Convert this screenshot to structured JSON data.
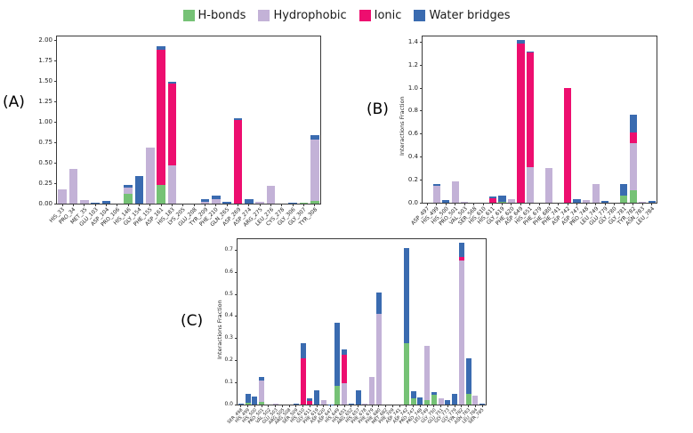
{
  "legend": {
    "items": [
      {
        "key": "h_bonds",
        "label": "H-bonds"
      },
      {
        "key": "hydrophobic",
        "label": "Hydrophobic"
      },
      {
        "key": "ionic",
        "label": "Ionic"
      },
      {
        "key": "water_bridges",
        "label": "Water bridges"
      }
    ]
  },
  "colors": {
    "h_bonds": "#76c276",
    "hydrophobic": "#c3b2d7",
    "ionic": "#ed0e6f",
    "water_bridges": "#3a6bb0",
    "axis": "#3a3a3a"
  },
  "chart_data": [
    {
      "id": "A",
      "panel_label": "(A)",
      "type": "bar",
      "stacked": true,
      "ylabel": "",
      "ymax": 2.05,
      "yticks": [
        {
          "value": 0.0,
          "label": "0.00"
        },
        {
          "value": 0.25,
          "label": "0.25"
        },
        {
          "value": 0.5,
          "label": "0.50"
        },
        {
          "value": 0.75,
          "label": "0.75"
        },
        {
          "value": 1.0,
          "label": "1.00"
        },
        {
          "value": 1.25,
          "label": "1.25"
        },
        {
          "value": 1.5,
          "label": "1.50"
        },
        {
          "value": 1.75,
          "label": "1.75"
        },
        {
          "value": 2.0,
          "label": "2.00"
        }
      ],
      "categories": [
        "HIS_33",
        "PRO_34",
        "MET_35",
        "GLU_103",
        "ASP_104",
        "PRO_106",
        "HIS_146",
        "GLY_154",
        "PHE_155",
        "ASP_161",
        "HIS_183",
        "LYS_205",
        "GLU_208",
        "TYR_209",
        "PHE_210",
        "GLN_265",
        "ASP_269",
        "ASP_274",
        "ARG_275",
        "LEU_276",
        "CYS_278",
        "GLY_306",
        "GLY_307",
        "TYR_308"
      ],
      "series": [
        {
          "name": "H-bonds",
          "key": "h_bonds",
          "values": [
            0,
            0,
            0,
            0,
            0,
            0,
            0.12,
            0,
            0,
            0.23,
            0,
            0,
            0,
            0,
            0,
            0,
            0,
            0,
            0,
            0,
            0,
            0,
            0.01,
            0.03
          ]
        },
        {
          "name": "Hydrophobic",
          "key": "hydrophobic",
          "values": [
            0.17,
            0.43,
            0.045,
            0,
            0,
            0,
            0.08,
            0,
            0.69,
            0,
            0.47,
            0,
            0,
            0.02,
            0.06,
            0,
            0,
            0,
            0.025,
            0.22,
            0,
            0,
            0,
            0.75
          ]
        },
        {
          "name": "Ionic",
          "key": "ionic",
          "values": [
            0,
            0,
            0,
            0,
            0,
            0,
            0,
            0,
            0,
            1.66,
            1.0,
            0,
            0,
            0,
            0,
            0,
            1.03,
            0,
            0,
            0,
            0,
            0,
            0,
            0
          ]
        },
        {
          "name": "Water bridges",
          "key": "water_bridges",
          "values": [
            0,
            0,
            0,
            0.012,
            0.032,
            0,
            0.03,
            0.34,
            0,
            0.04,
            0.02,
            0,
            0,
            0.04,
            0.04,
            0.02,
            0.02,
            0.05,
            0,
            0,
            0,
            0.01,
            0,
            0.06
          ]
        }
      ]
    },
    {
      "id": "B",
      "panel_label": "(B)",
      "type": "bar",
      "stacked": true,
      "ylabel": "Interactions Fraction",
      "ymax": 1.45,
      "yticks": [
        {
          "value": 0.0,
          "label": "0.0"
        },
        {
          "value": 0.2,
          "label": "0.2"
        },
        {
          "value": 0.4,
          "label": "0.4"
        },
        {
          "value": 0.6,
          "label": "0.6"
        },
        {
          "value": 0.8,
          "label": "0.8"
        },
        {
          "value": 1.0,
          "label": "1.0"
        },
        {
          "value": 1.2,
          "label": "1.2"
        },
        {
          "value": 1.4,
          "label": "1.4"
        }
      ],
      "categories": [
        "ASP_497",
        "HIS_499",
        "HIS_500",
        "PRO_501",
        "VAL_503",
        "SER_568",
        "HIS_610",
        "HIS_611",
        "GLY_619",
        "PHE_620",
        "ASP_649",
        "HIS_651",
        "PHE_679",
        "PHE_680",
        "PHE_741",
        "ASP_742",
        "ASP_747",
        "PRO_748",
        "LEU_749",
        "GLU_779",
        "GLY_780",
        "GLY_781",
        "TYR_782",
        "ASN_783",
        "LEU_784"
      ],
      "series": [
        {
          "name": "H-bonds",
          "key": "h_bonds",
          "values": [
            0,
            0,
            0,
            0,
            0,
            0,
            0,
            0,
            0.01,
            0,
            0,
            0,
            0,
            0,
            0,
            0,
            0,
            0,
            0,
            0,
            0,
            0.06,
            0.11,
            0,
            0
          ]
        },
        {
          "name": "Hydrophobic",
          "key": "hydrophobic",
          "values": [
            0,
            0.145,
            0,
            0.185,
            0.01,
            0,
            0,
            0,
            0,
            0.03,
            0,
            0.31,
            0,
            0.3,
            0,
            0,
            0,
            0.02,
            0.165,
            0,
            0,
            0,
            0.41,
            0.005,
            0
          ]
        },
        {
          "name": "Ionic",
          "key": "ionic",
          "values": [
            0,
            0,
            0,
            0,
            0,
            0,
            0,
            0.04,
            0,
            0,
            1.39,
            1.0,
            0,
            0,
            0,
            1.0,
            0,
            0,
            0,
            0,
            0,
            0,
            0.09,
            0,
            0
          ]
        },
        {
          "name": "Water bridges",
          "key": "water_bridges",
          "values": [
            0,
            0.015,
            0.025,
            0,
            0,
            0,
            0,
            0.012,
            0.055,
            0,
            0.03,
            0.012,
            0,
            0,
            0,
            0,
            0.03,
            0,
            0,
            0.015,
            0,
            0.1,
            0.155,
            0,
            0.015
          ]
        }
      ]
    },
    {
      "id": "C",
      "panel_label": "(C)",
      "type": "bar",
      "stacked": true,
      "ylabel": "Interactions Fraction",
      "ymax": 0.75,
      "yticks": [
        {
          "value": 0.0,
          "label": "0.0"
        },
        {
          "value": 0.1,
          "label": "0.1"
        },
        {
          "value": 0.2,
          "label": "0.2"
        },
        {
          "value": 0.3,
          "label": "0.3"
        },
        {
          "value": 0.4,
          "label": "0.4"
        },
        {
          "value": 0.5,
          "label": "0.5"
        },
        {
          "value": 0.6,
          "label": "0.6"
        },
        {
          "value": 0.7,
          "label": "0.7"
        }
      ],
      "categories": [
        "SER_498",
        "HIS_499",
        "HIS_500",
        "PRO_501",
        "VAL_502",
        "GLU_503",
        "ARG_505",
        "ARG_508",
        "SER_509",
        "HIS_610",
        "GLY_611",
        "PHE_619",
        "ASP_620",
        "ASP_647",
        "HIS_649",
        "HIS_651",
        "ARG_652",
        "HIS_657",
        "PHE_678",
        "PHE_679",
        "PHE_680",
        "MET_682",
        "PHE_709",
        "ASP_741",
        "ASP_742",
        "PRO_747",
        "PRO_748",
        "LEU_749",
        "GLY_750",
        "GLU_751",
        "GLY_773",
        "GLY_779",
        "TYR_782",
        "ASN_783",
        "LEU_784",
        "SER_785"
      ],
      "series": [
        {
          "name": "H-bonds",
          "key": "h_bonds",
          "values": [
            0,
            0.01,
            0,
            0.012,
            0,
            0,
            0,
            0,
            0,
            0,
            0,
            0,
            0,
            0,
            0.085,
            0,
            0,
            0,
            0,
            0,
            0,
            0,
            0,
            0,
            0.28,
            0.03,
            0,
            0.02,
            0.045,
            0,
            0,
            0,
            0,
            0.05,
            0,
            0
          ]
        },
        {
          "name": "Hydrophobic",
          "key": "hydrophobic",
          "values": [
            0,
            0,
            0,
            0.098,
            0,
            0.003,
            0,
            0,
            0,
            0,
            0,
            0,
            0.02,
            0,
            0,
            0.095,
            0,
            0,
            0.005,
            0.127,
            0.41,
            0,
            0,
            0,
            0,
            0,
            0,
            0.245,
            0,
            0.027,
            0,
            0,
            0.655,
            0,
            0.04,
            0
          ]
        },
        {
          "name": "Ionic",
          "key": "ionic",
          "values": [
            0,
            0,
            0,
            0,
            0,
            0,
            0,
            0,
            0,
            0.21,
            0.015,
            0,
            0,
            0,
            0,
            0.13,
            0,
            0,
            0,
            0,
            0,
            0,
            0,
            0,
            0,
            0,
            0,
            0,
            0,
            0,
            0,
            0,
            0.013,
            0,
            0,
            0
          ]
        },
        {
          "name": "Water bridges",
          "key": "water_bridges",
          "values": [
            0.005,
            0.038,
            0.037,
            0.015,
            0,
            0,
            0,
            0,
            0.003,
            0.07,
            0.015,
            0.065,
            0,
            0.002,
            0.285,
            0.025,
            0.003,
            0.065,
            0,
            0,
            0.1,
            0,
            0,
            0,
            0.43,
            0.03,
            0.033,
            0,
            0.01,
            0,
            0.022,
            0.05,
            0.067,
            0.16,
            0,
            0.005
          ]
        }
      ]
    }
  ]
}
